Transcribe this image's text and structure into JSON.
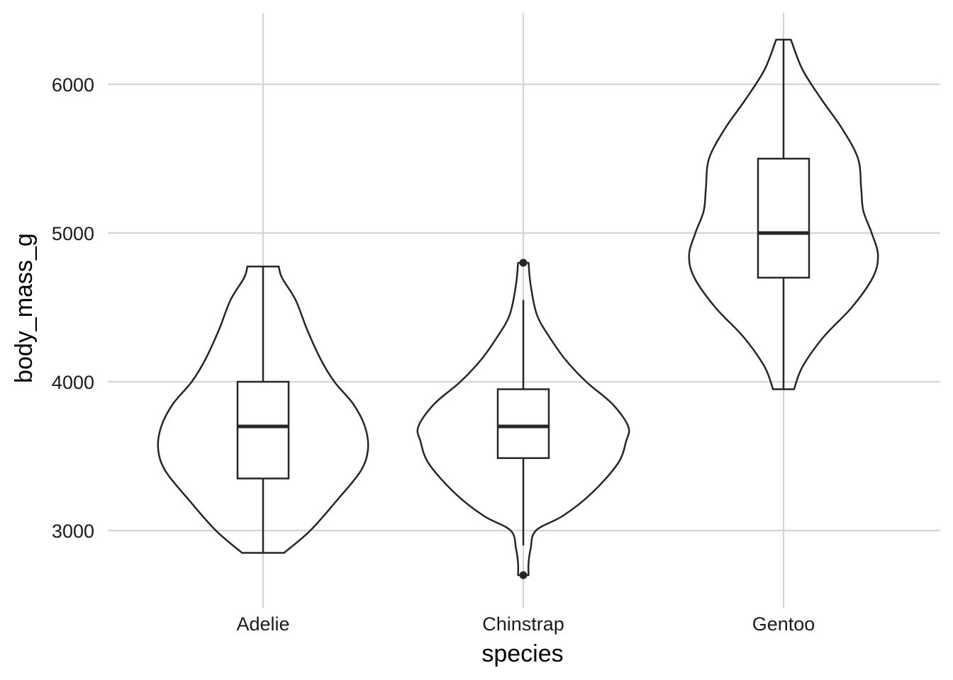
{
  "chart_data": {
    "type": "violin",
    "xlabel": "species",
    "ylabel": "body_mass_g",
    "ylim": [
      2500,
      6500
    ],
    "yticks": [
      3000,
      4000,
      5000,
      6000
    ],
    "categories": [
      "Adelie",
      "Chinstrap",
      "Gentoo"
    ],
    "grid": true,
    "colors": {
      "outline": "#262626",
      "grid": "#d4d4d4"
    },
    "series": [
      {
        "category": "Adelie",
        "box": {
          "q1": 3350,
          "median": 3700,
          "q3": 4000,
          "whisker_low": 2850,
          "whisker_high": 4775
        },
        "outliers": [],
        "violin_profile": [
          [
            2850,
            0.2
          ],
          [
            3000,
            0.45
          ],
          [
            3200,
            0.7
          ],
          [
            3400,
            0.93
          ],
          [
            3550,
            1.0
          ],
          [
            3700,
            0.97
          ],
          [
            3850,
            0.86
          ],
          [
            4000,
            0.68
          ],
          [
            4150,
            0.55
          ],
          [
            4350,
            0.42
          ],
          [
            4550,
            0.31
          ],
          [
            4700,
            0.18
          ],
          [
            4775,
            0.15
          ]
        ]
      },
      {
        "category": "Chinstrap",
        "box": {
          "q1": 3487,
          "median": 3700,
          "q3": 3950,
          "whisker_low": 2900,
          "whisker_high": 4550
        },
        "outliers": [
          2700,
          4800
        ],
        "violin_profile": [
          [
            2700,
            0.05
          ],
          [
            2780,
            0.05
          ],
          [
            2880,
            0.07
          ],
          [
            3000,
            0.12
          ],
          [
            3100,
            0.38
          ],
          [
            3250,
            0.65
          ],
          [
            3450,
            0.9
          ],
          [
            3600,
            0.98
          ],
          [
            3700,
            1.0
          ],
          [
            3850,
            0.85
          ],
          [
            4000,
            0.6
          ],
          [
            4150,
            0.4
          ],
          [
            4300,
            0.25
          ],
          [
            4450,
            0.13
          ],
          [
            4650,
            0.07
          ],
          [
            4800,
            0.05
          ]
        ]
      },
      {
        "category": "Gentoo",
        "box": {
          "q1": 4700,
          "median": 5000,
          "q3": 5500,
          "whisker_low": 3950,
          "whisker_high": 6300
        },
        "outliers": [],
        "violin_profile": [
          [
            3950,
            0.1
          ],
          [
            4100,
            0.18
          ],
          [
            4300,
            0.38
          ],
          [
            4500,
            0.65
          ],
          [
            4700,
            0.85
          ],
          [
            4850,
            0.9
          ],
          [
            5000,
            0.84
          ],
          [
            5150,
            0.76
          ],
          [
            5300,
            0.74
          ],
          [
            5500,
            0.71
          ],
          [
            5700,
            0.56
          ],
          [
            5900,
            0.36
          ],
          [
            6100,
            0.18
          ],
          [
            6300,
            0.07
          ]
        ]
      }
    ]
  }
}
